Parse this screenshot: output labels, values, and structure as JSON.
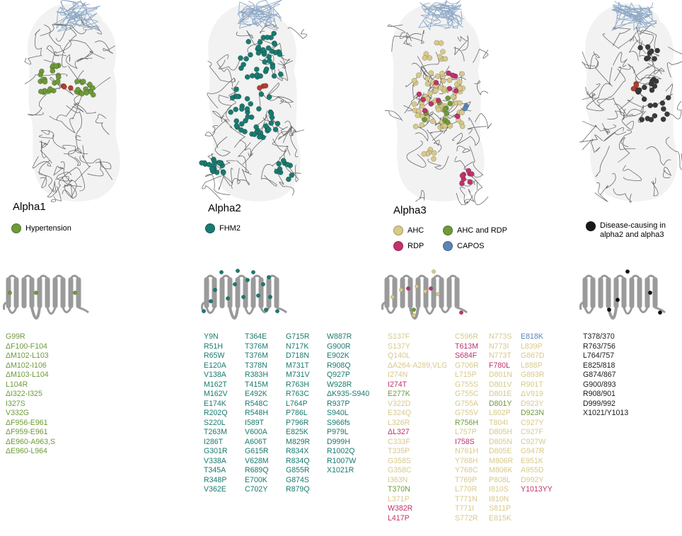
{
  "colors": {
    "green": "#6e9a3a",
    "teal": "#1a7a70",
    "tan": "#d8c98a",
    "pink": "#c0326c",
    "blue": "#5b84b4",
    "black": "#1a1a1a"
  },
  "panels": [
    {
      "label": "Alpha1",
      "legend": [
        {
          "name": "Hypertension",
          "color": "#6e9a3a"
        }
      ],
      "mutation_columns": [
        [
          {
            "t": "G99R",
            "c": "green"
          },
          {
            "t": "ΔF100-F104",
            "c": "green"
          },
          {
            "t": "ΔM102-L103",
            "c": "green"
          },
          {
            "t": "ΔM102-I106",
            "c": "green"
          },
          {
            "t": "ΔM103-L104",
            "c": "green"
          },
          {
            "t": "L104R",
            "c": "green"
          },
          {
            "t": "ΔI322-I325",
            "c": "green"
          },
          {
            "t": "I327S",
            "c": "green"
          },
          {
            "t": "V332G",
            "c": "green"
          },
          {
            "t": "ΔF956-E961",
            "c": "green"
          },
          {
            "t": "ΔF959-E961",
            "c": "green"
          },
          {
            "t": "ΔE960-A963,S",
            "c": "green"
          },
          {
            "t": "ΔE960-L964",
            "c": "green"
          }
        ]
      ]
    },
    {
      "label": "Alpha2",
      "legend": [
        {
          "name": "FHM2",
          "color": "#1a7a70"
        }
      ],
      "mutation_columns": [
        [
          {
            "t": "Y9N",
            "c": "teal"
          },
          {
            "t": "R51H",
            "c": "teal"
          },
          {
            "t": "R65W",
            "c": "teal"
          },
          {
            "t": "E120A",
            "c": "teal"
          },
          {
            "t": "V138A",
            "c": "teal"
          },
          {
            "t": "M162T",
            "c": "teal"
          },
          {
            "t": "M162V",
            "c": "teal"
          },
          {
            "t": "E174K",
            "c": "teal"
          },
          {
            "t": "R202Q",
            "c": "teal"
          },
          {
            "t": "S220L",
            "c": "teal"
          },
          {
            "t": "T263M",
            "c": "teal"
          },
          {
            "t": "I286T",
            "c": "teal"
          },
          {
            "t": "G301R",
            "c": "teal"
          },
          {
            "t": "V338A",
            "c": "teal"
          },
          {
            "t": "T345A",
            "c": "teal"
          },
          {
            "t": "R348P",
            "c": "teal"
          },
          {
            "t": "V362E",
            "c": "teal"
          }
        ],
        [
          {
            "t": "T364E",
            "c": "teal"
          },
          {
            "t": "T376M",
            "c": "teal"
          },
          {
            "t": "T376M",
            "c": "teal"
          },
          {
            "t": "T378N",
            "c": "teal"
          },
          {
            "t": "R383H",
            "c": "teal"
          },
          {
            "t": "T415M",
            "c": "teal"
          },
          {
            "t": "E492K",
            "c": "teal"
          },
          {
            "t": "R548C",
            "c": "teal"
          },
          {
            "t": "R548H",
            "c": "teal"
          },
          {
            "t": "I589T",
            "c": "teal"
          },
          {
            "t": "V600A",
            "c": "teal"
          },
          {
            "t": "A606T",
            "c": "teal"
          },
          {
            "t": "G615R",
            "c": "teal"
          },
          {
            "t": "V628M",
            "c": "teal"
          },
          {
            "t": "R689Q",
            "c": "teal"
          },
          {
            "t": "E700K",
            "c": "teal"
          },
          {
            "t": "C702Y",
            "c": "teal"
          }
        ],
        [
          {
            "t": "G715R",
            "c": "teal"
          },
          {
            "t": "N717K",
            "c": "teal"
          },
          {
            "t": "D718N",
            "c": "teal"
          },
          {
            "t": "M731T",
            "c": "teal"
          },
          {
            "t": "M731V",
            "c": "teal"
          },
          {
            "t": "R763H",
            "c": "teal"
          },
          {
            "t": "R763C",
            "c": "teal"
          },
          {
            "t": "L764P",
            "c": "teal"
          },
          {
            "t": "P786L",
            "c": "teal"
          },
          {
            "t": "P796R",
            "c": "teal"
          },
          {
            "t": "E825K",
            "c": "teal"
          },
          {
            "t": "M829R",
            "c": "teal"
          },
          {
            "t": "R834X",
            "c": "teal"
          },
          {
            "t": "R834Q",
            "c": "teal"
          },
          {
            "t": "G855R",
            "c": "teal"
          },
          {
            "t": "G874S",
            "c": "teal"
          },
          {
            "t": "R879Q",
            "c": "teal"
          }
        ],
        [
          {
            "t": "W887R",
            "c": "teal"
          },
          {
            "t": "G900R",
            "c": "teal"
          },
          {
            "t": "E902K",
            "c": "teal"
          },
          {
            "t": "R908Q",
            "c": "teal"
          },
          {
            "t": "Q927P",
            "c": "teal"
          },
          {
            "t": "W928R",
            "c": "teal"
          },
          {
            "t": "ΔK935-S940",
            "c": "teal"
          },
          {
            "t": "R937P",
            "c": "teal"
          },
          {
            "t": "S940L",
            "c": "teal"
          },
          {
            "t": "S966fs",
            "c": "teal"
          },
          {
            "t": "P979L",
            "c": "teal"
          },
          {
            "t": "D999H",
            "c": "teal"
          },
          {
            "t": "R1002Q",
            "c": "teal"
          },
          {
            "t": "R1007W",
            "c": "teal"
          },
          {
            "t": "X1021R",
            "c": "teal"
          }
        ]
      ]
    },
    {
      "label": "Alpha3",
      "legend": [
        {
          "name": "AHC",
          "color": "#d8c98a"
        },
        {
          "name": "AHC and RDP",
          "color": "#6e9a3a"
        },
        {
          "name": "RDP",
          "color": "#c0326c"
        },
        {
          "name": "CAPOS",
          "color": "#5b84b4"
        }
      ],
      "mutation_columns": [
        [
          {
            "t": "S137F",
            "c": "tan"
          },
          {
            "t": "S137Y",
            "c": "tan"
          },
          {
            "t": "Q140L",
            "c": "tan"
          },
          {
            "t": "ΔA264-A289,VLG",
            "c": "tan"
          },
          {
            "t": "I274N",
            "c": "tan"
          },
          {
            "t": "I274T",
            "c": "pink"
          },
          {
            "t": "E277K",
            "c": "green"
          },
          {
            "t": "V322D",
            "c": "tan"
          },
          {
            "t": "E324Q",
            "c": "tan"
          },
          {
            "t": "L326R",
            "c": "tan"
          },
          {
            "t": "ΔL327",
            "c": "pink"
          },
          {
            "t": "C333F",
            "c": "tan"
          },
          {
            "t": "T335P",
            "c": "tan"
          },
          {
            "t": "G358S",
            "c": "tan"
          },
          {
            "t": "G358C",
            "c": "tan"
          },
          {
            "t": "I363N",
            "c": "tan"
          },
          {
            "t": "T370N",
            "c": "green"
          },
          {
            "t": "L371P",
            "c": "tan"
          },
          {
            "t": "W382R",
            "c": "pink"
          },
          {
            "t": "L417P",
            "c": "pink"
          }
        ],
        [
          {
            "t": "C596R",
            "c": "tan"
          },
          {
            "t": "T613M",
            "c": "pink"
          },
          {
            "t": "S684F",
            "c": "pink"
          },
          {
            "t": "G706R",
            "c": "tan"
          },
          {
            "t": "L715P",
            "c": "tan"
          },
          {
            "t": "G755S",
            "c": "tan"
          },
          {
            "t": "G755C",
            "c": "tan"
          },
          {
            "t": "G755A",
            "c": "tan"
          },
          {
            "t": "G755V",
            "c": "tan"
          },
          {
            "t": "R756H",
            "c": "green"
          },
          {
            "t": "L757P",
            "c": "tan"
          },
          {
            "t": "I758S",
            "c": "pink"
          },
          {
            "t": "N761H",
            "c": "tan"
          },
          {
            "t": "Y768H",
            "c": "tan"
          },
          {
            "t": "Y768C",
            "c": "tan"
          },
          {
            "t": "T769P",
            "c": "tan"
          },
          {
            "t": "L770R",
            "c": "tan"
          },
          {
            "t": "T771N",
            "c": "tan"
          },
          {
            "t": "T771I",
            "c": "tan"
          },
          {
            "t": "S772R",
            "c": "tan"
          }
        ],
        [
          {
            "t": "N773S",
            "c": "tan"
          },
          {
            "t": "N773I",
            "c": "tan"
          },
          {
            "t": "N773T",
            "c": "tan"
          },
          {
            "t": "F780L",
            "c": "pink"
          },
          {
            "t": "D801N",
            "c": "tan"
          },
          {
            "t": "D801V",
            "c": "tan"
          },
          {
            "t": "D801E",
            "c": "tan"
          },
          {
            "t": "D801Y",
            "c": "green"
          },
          {
            "t": "L802P",
            "c": "tan"
          },
          {
            "t": "T804I",
            "c": "tan"
          },
          {
            "t": "D805H",
            "c": "tan"
          },
          {
            "t": "D805N",
            "c": "tan"
          },
          {
            "t": "D805E",
            "c": "tan"
          },
          {
            "t": "M806R",
            "c": "tan"
          },
          {
            "t": "M806K",
            "c": "tan"
          },
          {
            "t": "P808L",
            "c": "tan"
          },
          {
            "t": "I810S",
            "c": "tan"
          },
          {
            "t": "I810N",
            "c": "tan"
          },
          {
            "t": "S811P",
            "c": "tan"
          },
          {
            "t": "E815K",
            "c": "tan"
          }
        ],
        [
          {
            "t": "E818K",
            "c": "blue"
          },
          {
            "t": "L839P",
            "c": "tan"
          },
          {
            "t": "G867D",
            "c": "tan"
          },
          {
            "t": "L888P",
            "c": "tan"
          },
          {
            "t": "G893R",
            "c": "tan"
          },
          {
            "t": "R901T",
            "c": "tan"
          },
          {
            "t": "ΔV919",
            "c": "tan"
          },
          {
            "t": "D923Y",
            "c": "tan"
          },
          {
            "t": "D923N",
            "c": "green"
          },
          {
            "t": "C927Y",
            "c": "tan"
          },
          {
            "t": "C927F",
            "c": "tan"
          },
          {
            "t": "C927W",
            "c": "tan"
          },
          {
            "t": "G947R",
            "c": "tan"
          },
          {
            "t": "E951K",
            "c": "tan"
          },
          {
            "t": "A955D",
            "c": "tan"
          },
          {
            "t": "D992Y",
            "c": "tan"
          },
          {
            "t": "Y1013YY",
            "c": "pink"
          }
        ]
      ]
    },
    {
      "label": "",
      "legend": [
        {
          "name": "Disease-causing in alpha2 and alpha3",
          "color": "#1a1a1a"
        }
      ],
      "mutation_columns": [
        [
          {
            "t": "T378/370",
            "c": "black"
          },
          {
            "t": "R763/756",
            "c": "black"
          },
          {
            "t": "L764/757",
            "c": "black"
          },
          {
            "t": "E825/818",
            "c": "black"
          },
          {
            "t": "G874/867",
            "c": "black"
          },
          {
            "t": "G900/893",
            "c": "black"
          },
          {
            "t": "R908/901",
            "c": "black"
          },
          {
            "t": "D999/992",
            "c": "black"
          },
          {
            "t": "X1021/Y1013",
            "c": "black"
          }
        ]
      ]
    }
  ]
}
